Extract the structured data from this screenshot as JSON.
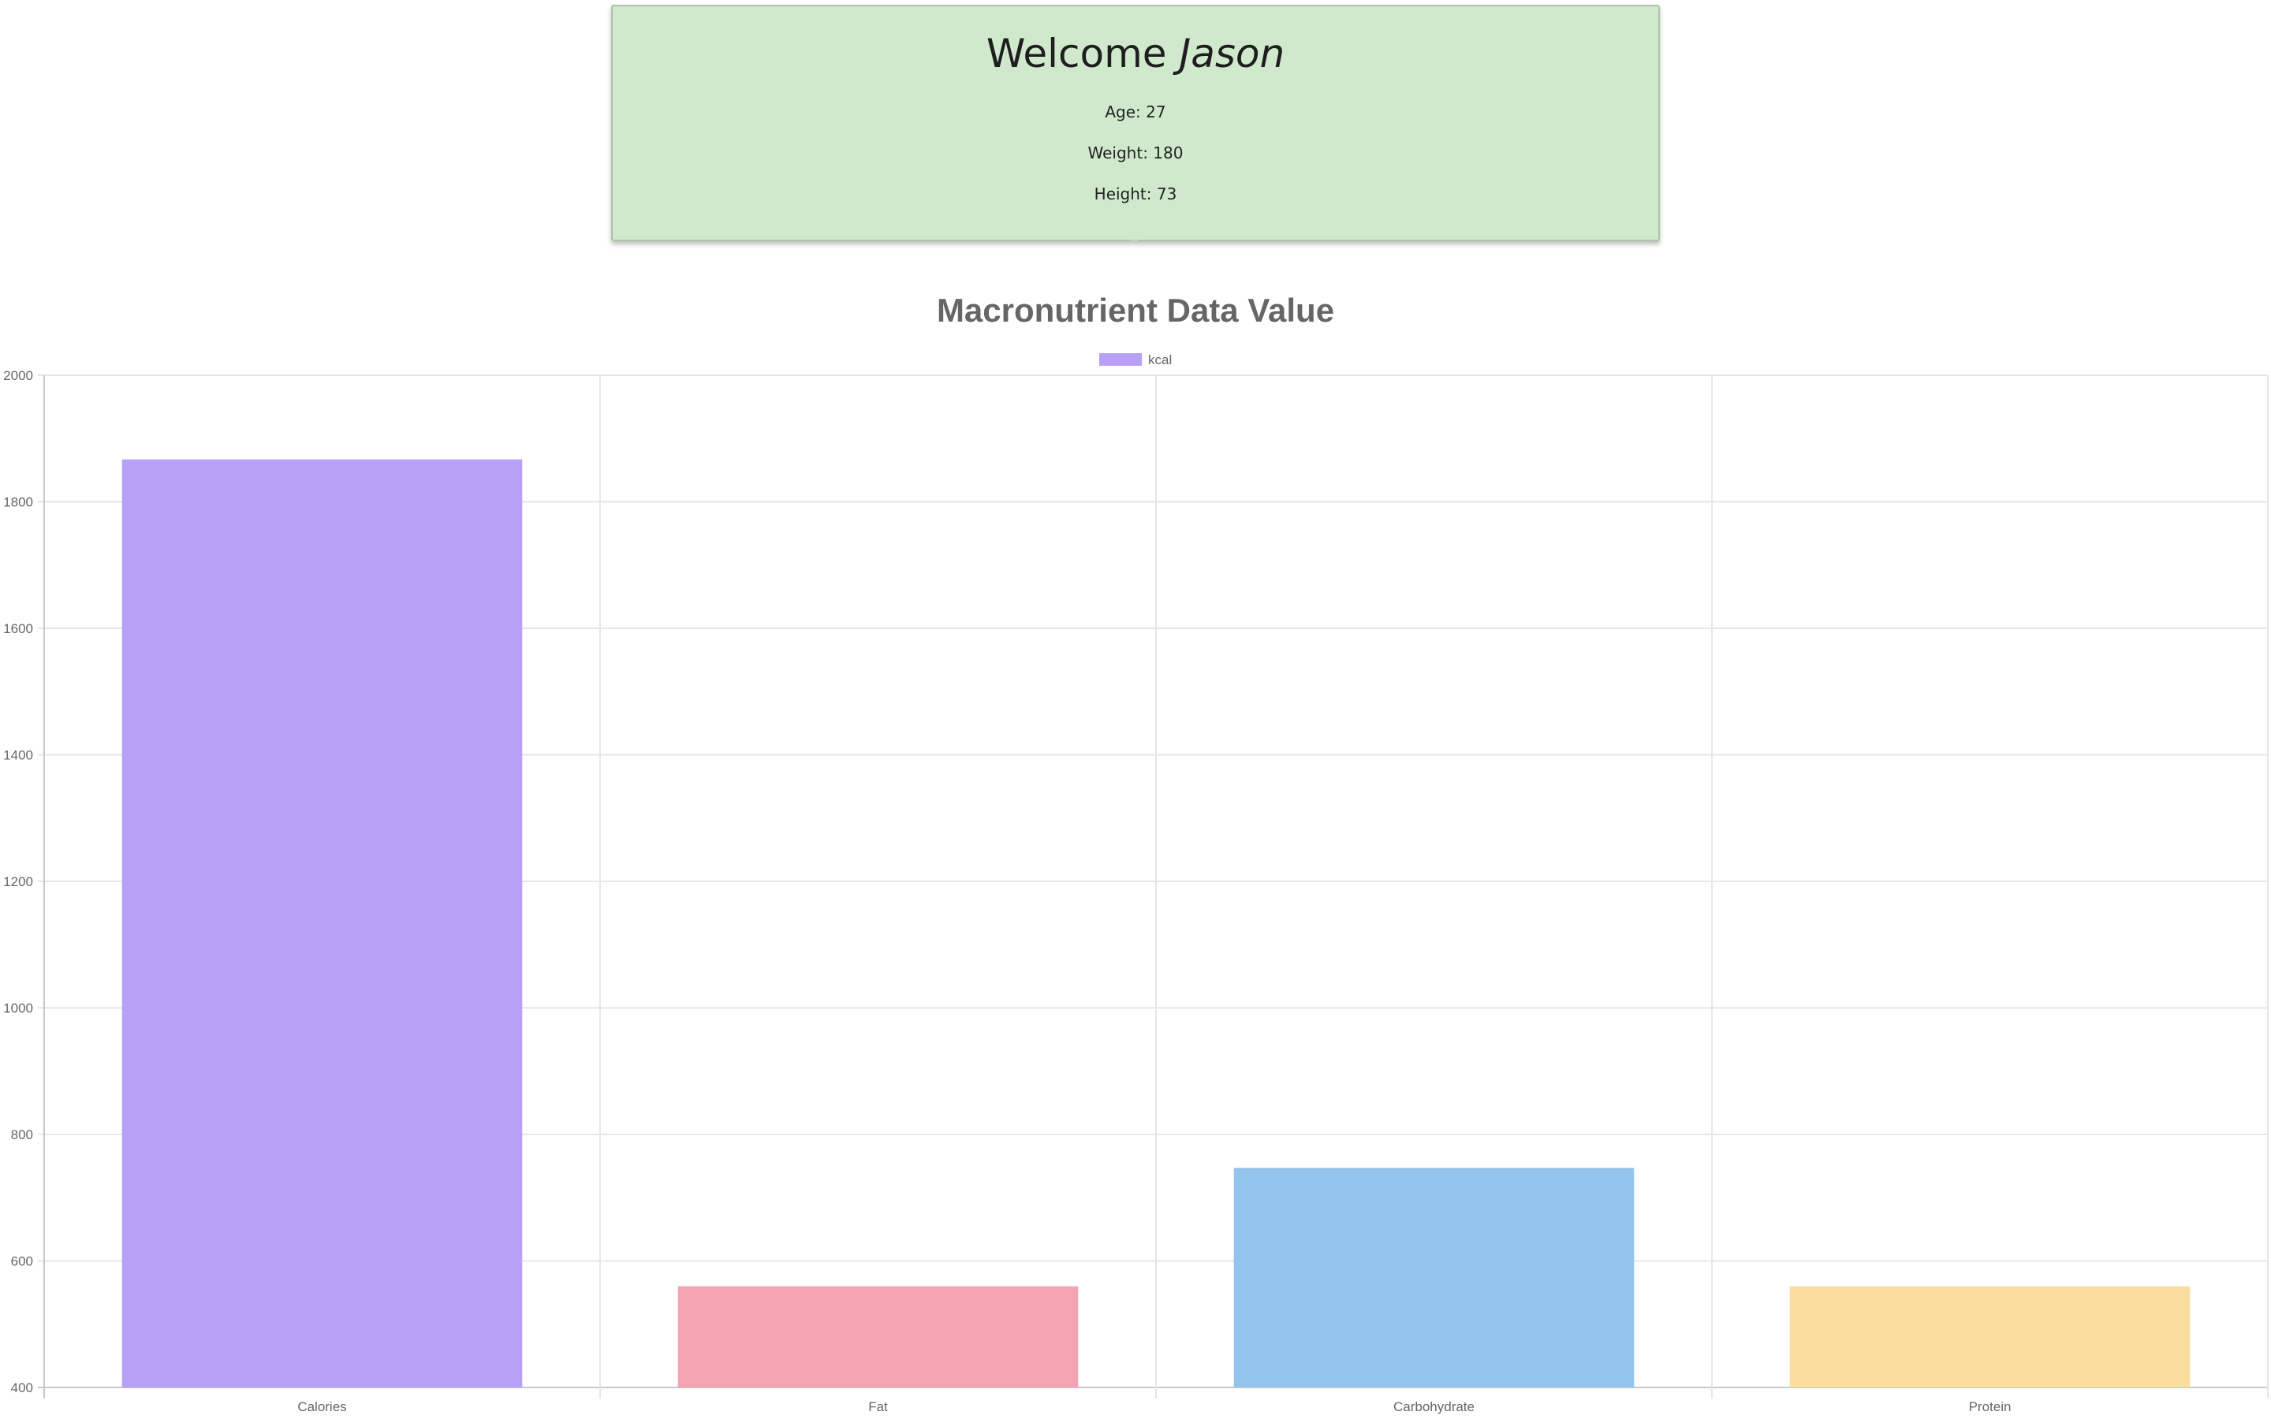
{
  "profile": {
    "welcome_prefix": "Welcome",
    "name": "Jason",
    "age_text": "Age: 27",
    "weight_text": "Weight: 180",
    "height_text": "Height: 73",
    "background_color": "#d0e9cd"
  },
  "chart_data": {
    "type": "bar",
    "title": "Macronutrient Data Value",
    "xlabel": "",
    "ylabel": "",
    "categories": [
      "Calories",
      "Fat",
      "Carbohydrate",
      "Protein"
    ],
    "series": [
      {
        "name": "kcal",
        "values": [
          1867,
          560,
          747,
          560
        ],
        "colors": [
          "#b7a0f6",
          "#f4a3b3",
          "#93c4ee",
          "#f9dea0"
        ],
        "legend_color": "#b7a0f6"
      }
    ],
    "ylim": [
      400,
      2000
    ],
    "yticks": [
      "2000",
      "1800",
      "1600",
      "1400",
      "1200",
      "1000",
      "800",
      "600",
      "400"
    ],
    "grid": true,
    "legend_placement": "top-center"
  }
}
